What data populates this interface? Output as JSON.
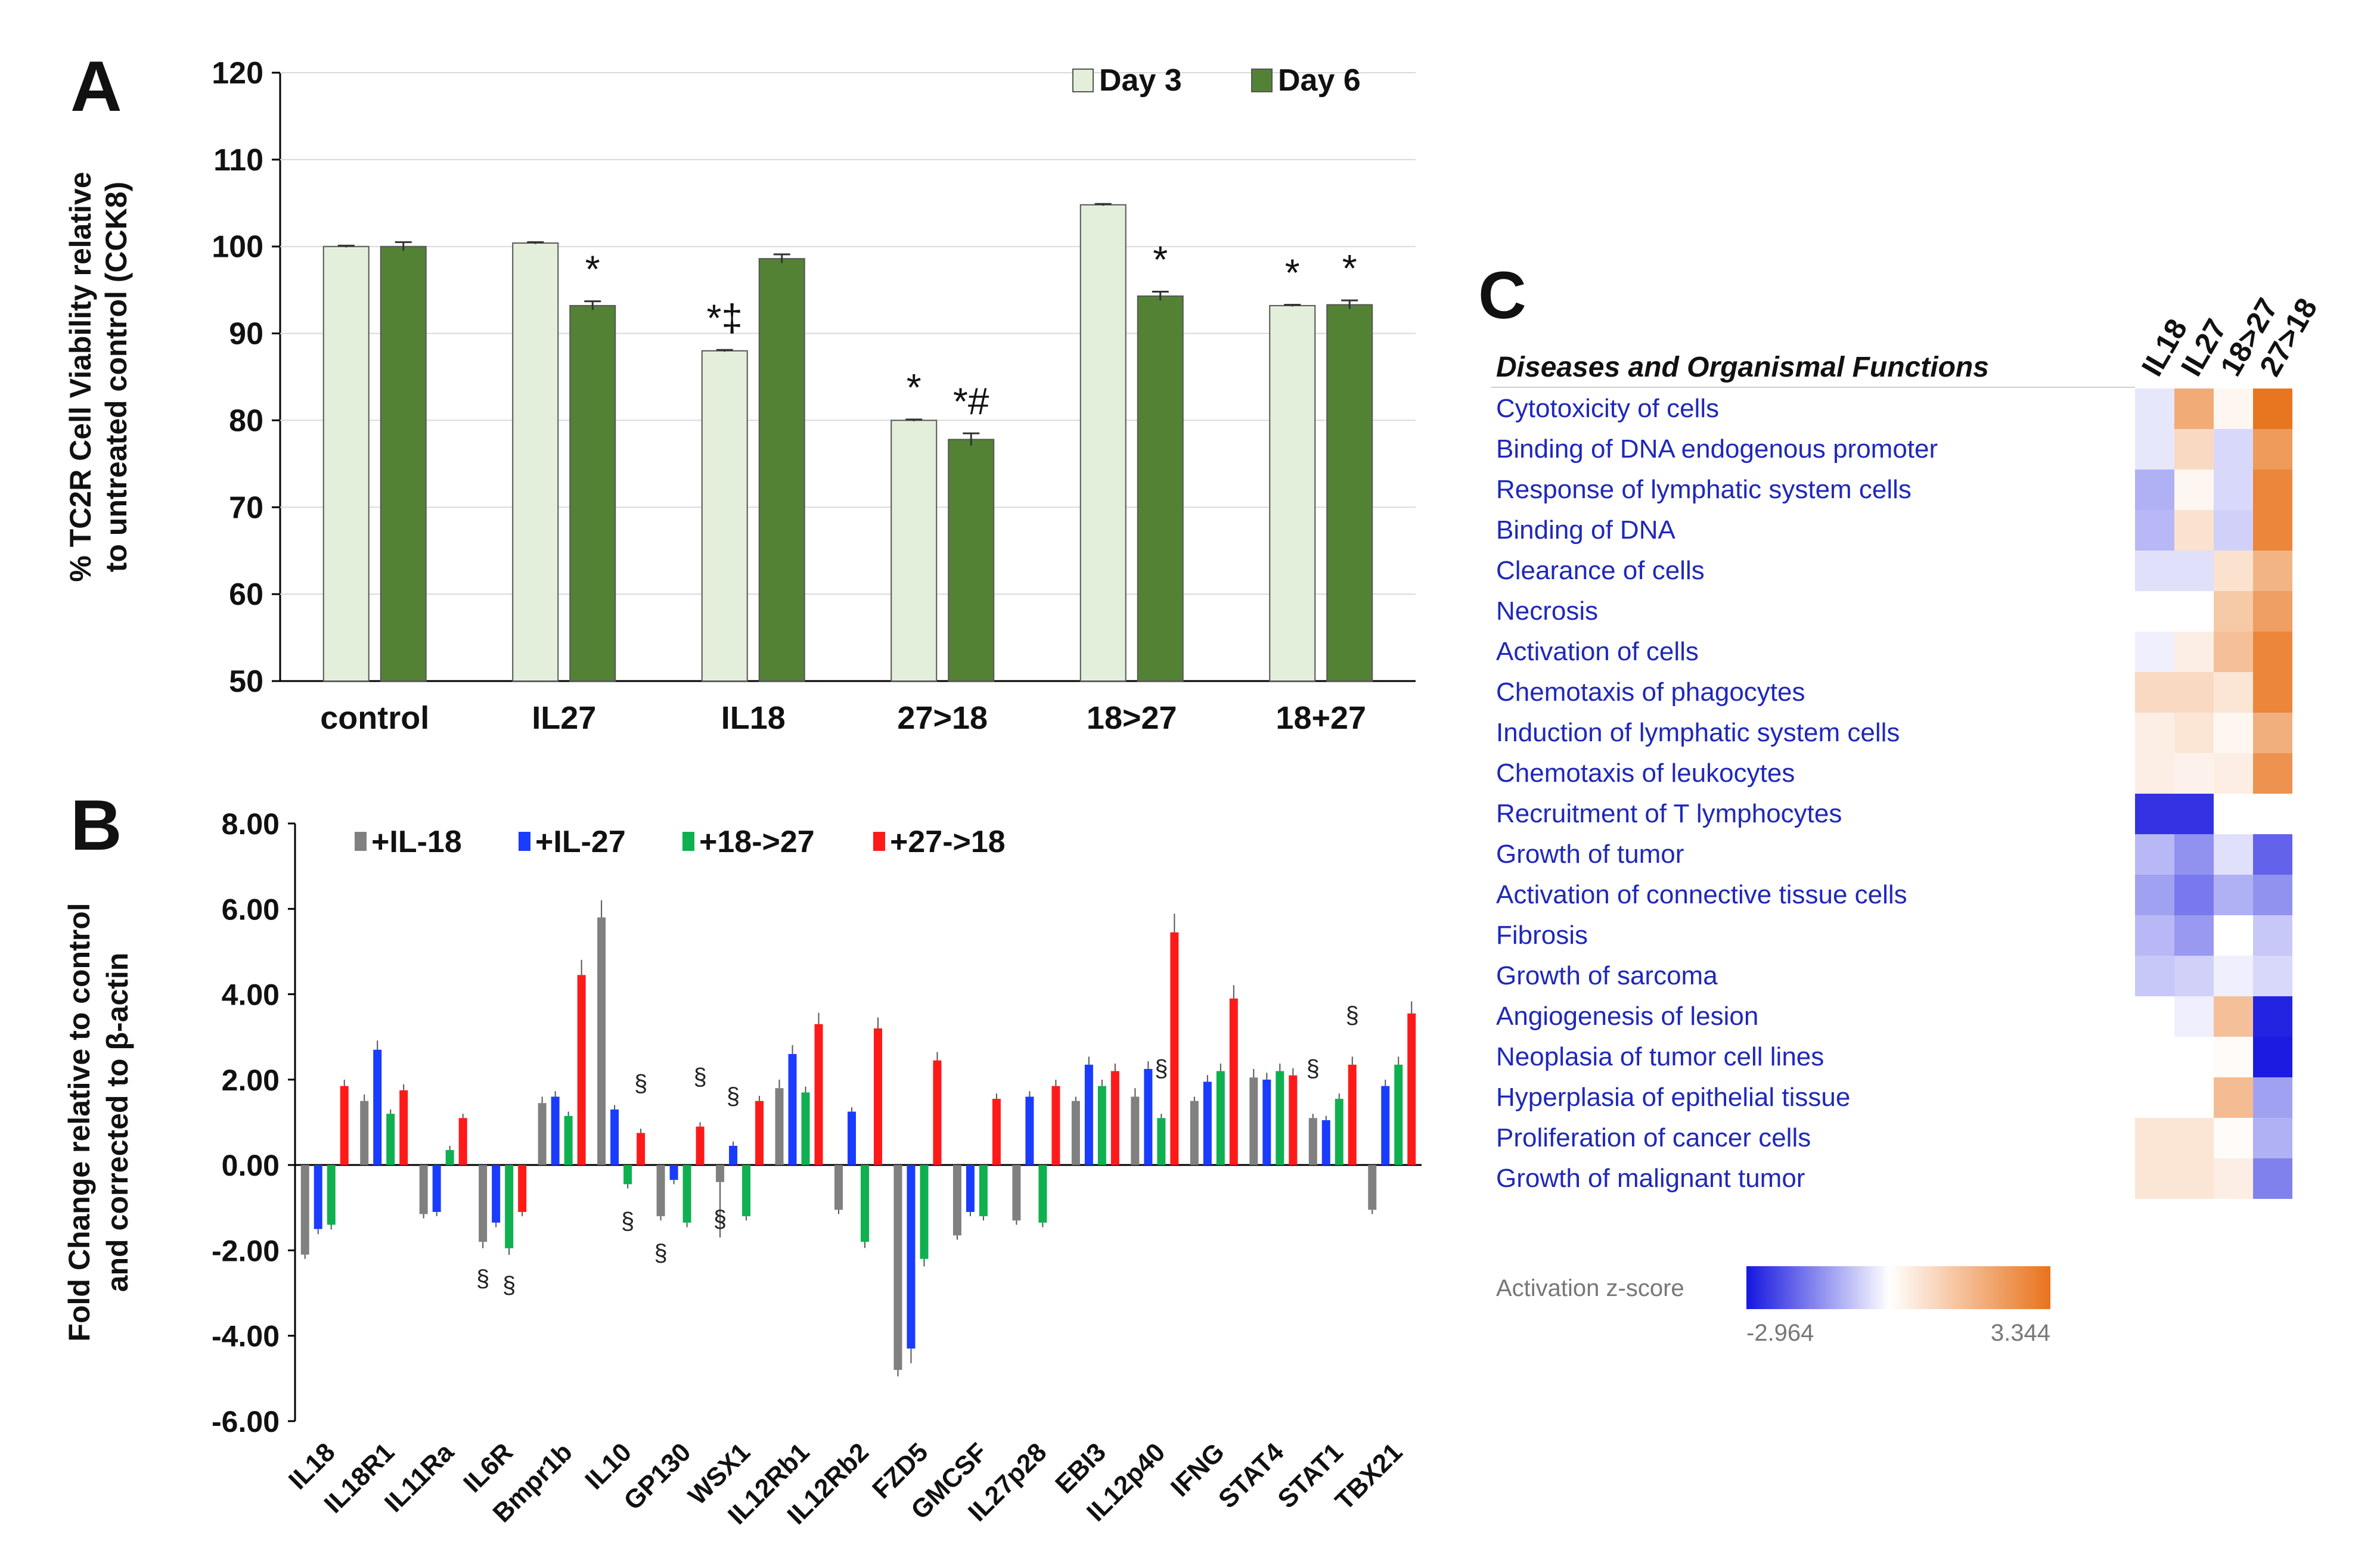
{
  "panel_labels": {
    "a": "A",
    "b": "B",
    "c": "C"
  },
  "chart_data": [
    {
      "id": "A",
      "type": "bar",
      "ylabel_line1": "% TC2R Cell Viability relative",
      "ylabel_line2": "to untreated control (CCK8)",
      "ylim": [
        50,
        120
      ],
      "yticks": [
        50,
        60,
        70,
        80,
        90,
        100,
        110,
        120
      ],
      "categories": [
        "control",
        "IL27",
        "IL18",
        "27>18",
        "18>27",
        "18+27"
      ],
      "series": [
        {
          "name": "Day 3",
          "color": "#e3efda",
          "values": [
            100,
            100.4,
            88,
            80,
            104.8,
            93.2
          ],
          "errors": [
            0.1,
            0.1,
            0.1,
            0.1,
            0.1,
            0.1
          ]
        },
        {
          "name": "Day 6",
          "color": "#548235",
          "values": [
            100,
            93.2,
            98.6,
            77.8,
            94.3,
            93.3
          ],
          "errors": [
            0.5,
            0.5,
            0.5,
            0.7,
            0.5,
            0.5
          ]
        }
      ],
      "annotations": [
        {
          "category": "IL27",
          "series": 1,
          "text": "*"
        },
        {
          "category": "IL18",
          "series": 0,
          "text": "*‡"
        },
        {
          "category": "27>18",
          "series": 0,
          "text": "*"
        },
        {
          "category": "27>18",
          "series": 1,
          "text": "*#"
        },
        {
          "category": "18>27",
          "series": 1,
          "text": "*"
        },
        {
          "category": "18+27",
          "series": 0,
          "text": "*"
        },
        {
          "category": "18+27",
          "series": 1,
          "text": "*"
        }
      ]
    },
    {
      "id": "B",
      "type": "bar",
      "ylabel_line1": "Fold Change relative to control",
      "ylabel_line2": "and corrected to β-actin",
      "ylim": [
        -6,
        8
      ],
      "yticks": [
        "-6.00",
        "-4.00",
        "-2.00",
        "0.00",
        "2.00",
        "4.00",
        "6.00",
        "8.00"
      ],
      "categories": [
        "IL18",
        "IL18R1",
        "IL11Ra",
        "IL6R",
        "Bmpr1b",
        "IL10",
        "GP130",
        "WSX1",
        "IL12Rb1",
        "IL12Rb2",
        "FZD5",
        "GMCSF",
        "IL27p28",
        "EBI3",
        "IL12p40",
        "IFNG",
        "STAT4",
        "STAT1",
        "TBX21"
      ],
      "series": [
        {
          "name": "+IL-18",
          "color": "#808080",
          "values": [
            -2.1,
            1.5,
            -1.15,
            -1.8,
            1.45,
            5.8,
            -1.2,
            -0.4,
            1.8,
            -1.05,
            -4.8,
            -1.65,
            -1.3,
            1.5,
            1.6,
            1.5,
            2.05,
            1.1,
            -1.05
          ],
          "errors": [
            0.1,
            0.15,
            0.1,
            0.15,
            0.15,
            0.4,
            0.1,
            1.3,
            0.2,
            0.1,
            0.15,
            0.1,
            0.1,
            0.1,
            0.2,
            0.1,
            0.2,
            0.1,
            0.1
          ]
        },
        {
          "name": "+IL-27",
          "color": "#1a3cff",
          "values": [
            -1.5,
            2.7,
            -1.1,
            -1.35,
            1.6,
            1.3,
            -0.35,
            0.45,
            2.6,
            1.25,
            -4.3,
            -1.1,
            1.6,
            2.35,
            2.25,
            1.95,
            2.0,
            1.05,
            1.85
          ]
        },
        {
          "name": "+18->27",
          "color": "#0fb050",
          "values": [
            -1.4,
            1.2,
            0.35,
            -1.95,
            1.15,
            -0.45,
            -1.35,
            -1.2,
            1.7,
            -1.8,
            -2.2,
            -1.2,
            -1.35,
            1.85,
            1.1,
            2.2,
            2.2,
            1.55,
            2.35
          ]
        },
        {
          "name": "+27->18",
          "color": "#ff1a1a",
          "values": [
            1.85,
            1.75,
            1.1,
            -1.1,
            4.45,
            0.75,
            0.9,
            1.5,
            3.3,
            3.2,
            2.45,
            1.55,
            1.85,
            2.2,
            5.45,
            3.9,
            2.1,
            2.35,
            3.55
          ]
        }
      ],
      "annotations": [
        {
          "category": "IL6R",
          "series": 0,
          "text": "§"
        },
        {
          "category": "IL6R",
          "series": 2,
          "text": "§"
        },
        {
          "category": "IL10",
          "series": 2,
          "text": "§"
        },
        {
          "category": "IL10",
          "series": 3,
          "text": "§"
        },
        {
          "category": "GP130",
          "series": 0,
          "text": "§"
        },
        {
          "category": "GP130",
          "series": 3,
          "text": "§"
        },
        {
          "category": "WSX1",
          "series": 0,
          "text": "§"
        },
        {
          "category": "WSX1",
          "series": 1,
          "text": "§"
        },
        {
          "category": "IL12p40",
          "series": 2,
          "text": "§"
        },
        {
          "category": "STAT1",
          "series": 0,
          "text": "§"
        },
        {
          "category": "STAT1",
          "series": 3,
          "text": "§"
        }
      ]
    },
    {
      "id": "C",
      "type": "heatmap",
      "title": "Diseases and Organismal Functions",
      "columns": [
        "IL18",
        "IL27",
        "18->27",
        "27->18"
      ],
      "rows": [
        "Cytotoxicity of cells",
        "Binding of DNA endogenous promoter",
        "Response of lymphatic system cells",
        "Binding of DNA",
        "Clearance of cells",
        "Necrosis",
        "Activation of cells",
        "Chemotaxis of phagocytes",
        "Induction of lymphatic system cells",
        "Chemotaxis of leukocytes",
        "Recruitment of T lymphocytes",
        "Growth of tumor",
        "Activation of connective tissue cells",
        "Fibrosis",
        "Growth of sarcoma",
        "Angiogenesis of lesion",
        "Neoplasia of tumor cell lines",
        "Hyperplasia of epithelial tissue",
        "Proliferation of cancer cells",
        "Growth of malignant tumor"
      ],
      "values": [
        [
          -0.3,
          2.0,
          0.2,
          3.3
        ],
        [
          -0.3,
          0.9,
          -0.5,
          2.4
        ],
        [
          -1.0,
          0.2,
          -0.5,
          2.9
        ],
        [
          -0.9,
          0.7,
          -0.6,
          2.9
        ],
        [
          -0.4,
          -0.4,
          0.7,
          1.8
        ],
        [
          null,
          null,
          1.3,
          2.3
        ],
        [
          -0.2,
          0.4,
          1.5,
          2.9
        ],
        [
          0.9,
          0.9,
          0.6,
          2.9
        ],
        [
          0.4,
          0.6,
          0.2,
          1.9
        ],
        [
          0.4,
          0.3,
          0.4,
          2.6
        ],
        [
          -2.6,
          -2.6,
          null,
          null
        ],
        [
          -0.9,
          -1.4,
          -0.4,
          -2.0
        ],
        [
          -1.2,
          -1.7,
          -1.0,
          -1.4
        ],
        [
          -0.9,
          -1.3,
          0.0,
          -0.7
        ],
        [
          -0.7,
          -0.6,
          -0.2,
          -0.5
        ],
        [
          null,
          -0.2,
          1.5,
          -2.8
        ],
        [
          null,
          null,
          0.1,
          -2.9
        ],
        [
          null,
          null,
          1.6,
          -1.2
        ],
        [
          0.6,
          0.6,
          0.1,
          -1.0
        ],
        [
          0.6,
          0.6,
          0.4,
          -1.6
        ]
      ],
      "legend": {
        "label": "Activation z-score",
        "min": "-2.964",
        "max": "3.344",
        "min_color": "#1616e0",
        "mid_color": "#ffffff",
        "max_color": "#e8731c"
      }
    }
  ]
}
